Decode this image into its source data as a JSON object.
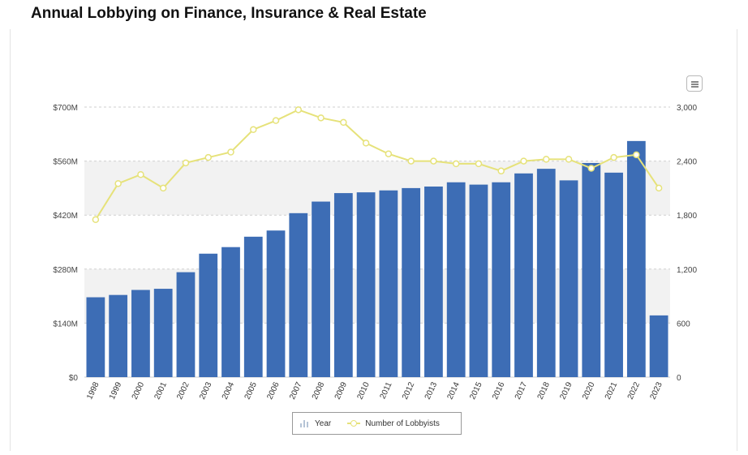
{
  "page": {
    "title": "Annual Lobbying on Finance, Insurance & Real Estate"
  },
  "legend": {
    "bar_label": "Year",
    "line_label": "Number of Lobbyists"
  },
  "colors": {
    "bar": "#3d6db5",
    "line": "#e6e27a",
    "band": "#f2f2f2",
    "grid": "#cfcfcf"
  },
  "chart_data": {
    "type": "bar",
    "title": "Annual Lobbying on Finance, Insurance & Real Estate",
    "categories": [
      "1998",
      "1999",
      "2000",
      "2001",
      "2002",
      "2003",
      "2004",
      "2005",
      "2006",
      "2007",
      "2008",
      "2009",
      "2010",
      "2011",
      "2012",
      "2013",
      "2014",
      "2015",
      "2016",
      "2017",
      "2018",
      "2019",
      "2020",
      "2021",
      "2022",
      "2023"
    ],
    "series": [
      {
        "name": "Year",
        "axis": "left",
        "type": "bar",
        "values": [
          207,
          213,
          226,
          229,
          272,
          320,
          337,
          364,
          380,
          425,
          455,
          477,
          479,
          484,
          490,
          494,
          505,
          499,
          505,
          528,
          540,
          510,
          555,
          530,
          612,
          160
        ]
      },
      {
        "name": "Number of Lobbyists",
        "axis": "right",
        "type": "line",
        "values": [
          1750,
          2150,
          2250,
          2100,
          2380,
          2440,
          2500,
          2750,
          2850,
          2970,
          2880,
          2830,
          2600,
          2480,
          2400,
          2400,
          2370,
          2370,
          2290,
          2400,
          2420,
          2420,
          2320,
          2440,
          2470,
          2100
        ]
      }
    ],
    "y_left": {
      "ylim": [
        0,
        700
      ],
      "ticks": [
        "$0",
        "$140M",
        "$280M",
        "$420M",
        "$560M",
        "$700M"
      ]
    },
    "y_right": {
      "ylim": [
        0,
        3000
      ],
      "ticks": [
        "0",
        "600",
        "1,200",
        "1,800",
        "2,400",
        "3,000"
      ]
    },
    "grid": true,
    "legend_position": "bottom-center"
  }
}
